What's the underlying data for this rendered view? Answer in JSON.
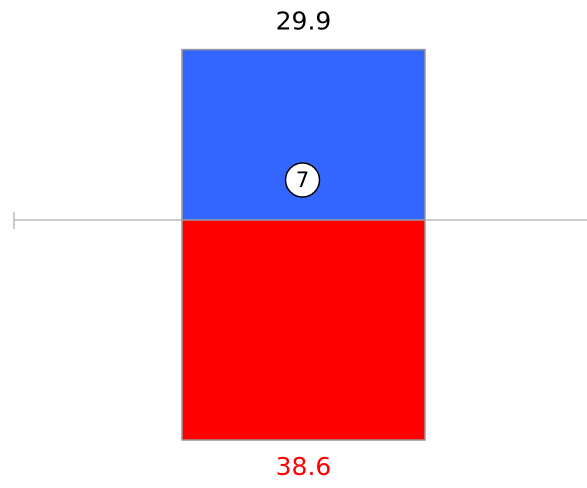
{
  "chart_data": {
    "type": "bar",
    "diverging": true,
    "annotation": "7",
    "series": [
      {
        "color": "#3366ff",
        "values": [
          29.9
        ]
      },
      {
        "color": "#ff0000",
        "values": [
          38.6
        ]
      }
    ]
  }
}
